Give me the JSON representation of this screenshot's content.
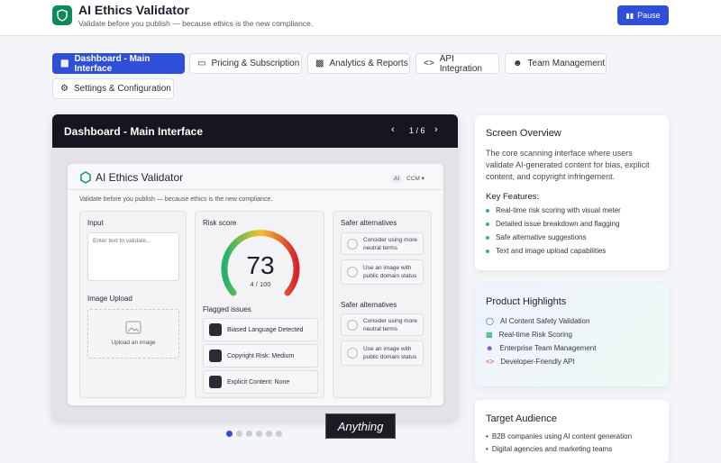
{
  "header": {
    "title": "AI Ethics Validator",
    "subtitle": "Validate before you publish — because ethics is the new compliance.",
    "button": "Pause"
  },
  "tabs": [
    "Dashboard - Main Interface",
    "Pricing & Subscription",
    "Analytics & Reports",
    "API Integration",
    "Team Management",
    "Settings & Configuration"
  ],
  "carousel": {
    "title": "Dashboard - Main Interface",
    "page": "1 / 6"
  },
  "mock": {
    "title": "AI Ethics Validator",
    "badge": "AI",
    "menu": "CCM",
    "subtitle": "Validate before you publish — because ethics is the new compliance.",
    "input_label": "Input",
    "input_placeholder": "Enter text to validate...",
    "upload_label": "Image Upload",
    "upload_text": "Upload an image",
    "risk_label": "Risk score",
    "risk_score": "73",
    "risk_sub": "4 / 100",
    "flagged_label": "Flagged issues",
    "flagged": [
      "Biased Language Detected",
      "Copyright Risk: Medium",
      "Explicit Content: None"
    ],
    "alternatives": [
      {
        "title": "Safer alternatives",
        "items": [
          "Consider using more neutral terms",
          "Use an image with public domain status"
        ]
      },
      {
        "title": "Safer alternatives",
        "items": [
          "Consider using more neutral terms",
          "Use an image with public domain status"
        ]
      }
    ]
  },
  "overview": {
    "title": "Screen Overview",
    "description": "The core scanning interface where users validate AI-generated content for bias, explicit content, and copyright infringement.",
    "features_heading": "Key Features:",
    "features": [
      "Real-time risk scoring with visual meter",
      "Detailed issue breakdown and flagging",
      "Safe alternative suggestions",
      "Text and image upload capabilities"
    ]
  },
  "highlights": {
    "title": "Product Highlights",
    "items": [
      "AI Content Safety Validation",
      "Real-time Risk Scoring",
      "Enterprise Team Management",
      "Developer-Friendly API"
    ]
  },
  "audience": {
    "title": "Target Audience",
    "items": [
      "B2B companies using AI content generation",
      "Digital agencies and marketing teams"
    ]
  },
  "watermark": "Anything"
}
